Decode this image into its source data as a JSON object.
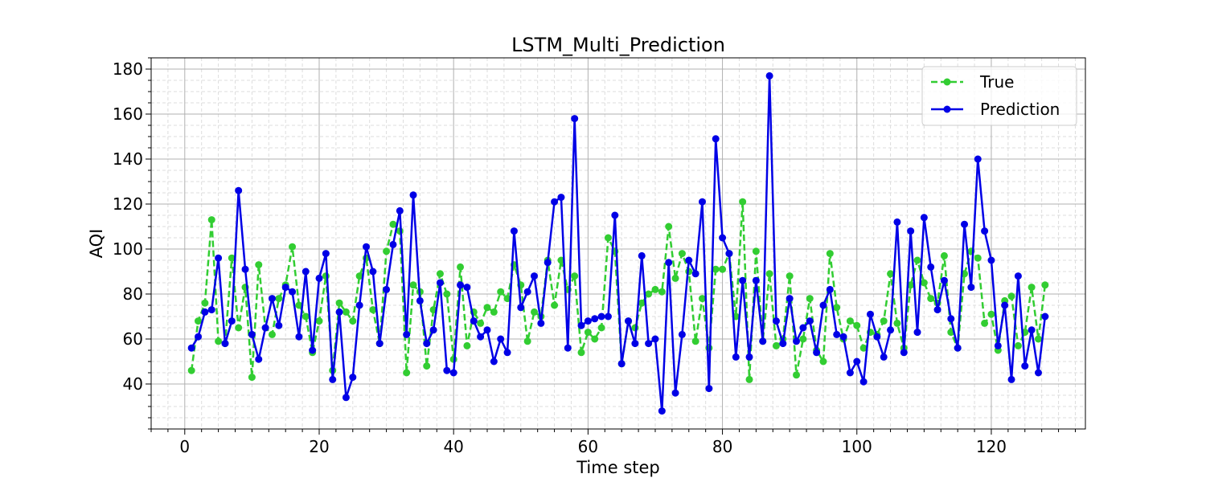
{
  "chart_data": {
    "type": "line",
    "title": "LSTM_Multi_Prediction",
    "xlabel": "Time step",
    "ylabel": "AQI",
    "xlim": [
      -5,
      134
    ],
    "ylim": [
      20,
      185
    ],
    "xticks": [
      0,
      20,
      40,
      60,
      80,
      100,
      120
    ],
    "yticks": [
      40,
      60,
      80,
      100,
      120,
      140,
      160,
      180
    ],
    "x_minor_step": 2.5,
    "y_minor_step": 5,
    "grid": true,
    "legend": "top-right",
    "x": [
      1,
      2,
      3,
      4,
      5,
      6,
      7,
      8,
      9,
      10,
      11,
      12,
      13,
      14,
      15,
      16,
      17,
      18,
      19,
      20,
      21,
      22,
      23,
      24,
      25,
      26,
      27,
      28,
      29,
      30,
      31,
      32,
      33,
      34,
      35,
      36,
      37,
      38,
      39,
      40,
      41,
      42,
      43,
      44,
      45,
      46,
      47,
      48,
      49,
      50,
      51,
      52,
      53,
      54,
      55,
      56,
      57,
      58,
      59,
      60,
      61,
      62,
      63,
      64,
      65,
      66,
      67,
      68,
      69,
      70,
      71,
      72,
      73,
      74,
      75,
      76,
      77,
      78,
      79,
      80,
      81,
      82,
      83,
      84,
      85,
      86,
      87,
      88,
      89,
      90,
      91,
      92,
      93,
      94,
      95,
      96,
      97,
      98,
      99,
      100,
      101,
      102,
      103,
      104,
      105,
      106,
      107,
      108,
      109,
      110,
      111,
      112,
      113,
      114,
      115,
      116,
      117,
      118,
      119,
      120,
      121,
      122,
      123,
      124,
      125,
      126,
      127,
      128
    ],
    "series": [
      {
        "name": "True",
        "color": "#32cd32",
        "style": "dashed",
        "values": [
          46,
          68,
          76,
          113,
          59,
          58,
          96,
          65,
          83,
          43,
          93,
          65,
          62,
          78,
          84,
          101,
          75,
          70,
          54,
          68,
          88,
          46,
          76,
          72,
          68,
          88,
          96,
          73,
          58,
          99,
          111,
          108,
          45,
          84,
          81,
          48,
          73,
          89,
          80,
          51,
          92,
          57,
          72,
          67,
          74,
          72,
          81,
          78,
          93,
          84,
          59,
          72,
          70,
          95,
          75,
          95,
          82,
          88,
          54,
          63,
          60,
          65,
          105,
          99,
          49,
          68,
          65,
          76,
          80,
          82,
          81,
          110,
          87,
          98,
          90,
          59,
          78,
          56,
          91,
          91,
          98,
          70,
          121,
          42,
          99,
          59,
          89,
          57,
          60,
          88,
          44,
          60,
          78,
          55,
          50,
          98,
          74,
          60,
          68,
          66,
          56,
          63,
          62,
          68,
          89,
          67,
          56,
          84,
          95,
          85,
          78,
          76,
          97,
          63,
          56,
          89,
          99,
          96,
          67,
          71,
          55,
          77,
          79,
          57,
          63,
          83,
          60,
          84
        ]
      },
      {
        "name": "Prediction",
        "color": "#0000e6",
        "style": "solid",
        "values": [
          56,
          61,
          72,
          73,
          96,
          58,
          68,
          126,
          91,
          62,
          51,
          65,
          78,
          66,
          83,
          81,
          61,
          90,
          55,
          87,
          98,
          42,
          72,
          34,
          43,
          75,
          101,
          90,
          58,
          82,
          102,
          117,
          62,
          124,
          77,
          58,
          64,
          85,
          46,
          45,
          84,
          83,
          68,
          61,
          64,
          50,
          60,
          54,
          108,
          74,
          81,
          88,
          67,
          94,
          121,
          123,
          56,
          158,
          66,
          68,
          69,
          70,
          70,
          115,
          49,
          68,
          58,
          97,
          58,
          60,
          28,
          94,
          36,
          62,
          95,
          89,
          121,
          38,
          149,
          105,
          98,
          52,
          86,
          52,
          86,
          59,
          177,
          68,
          58,
          78,
          59,
          65,
          68,
          54,
          75,
          82,
          62,
          61,
          45,
          50,
          41,
          71,
          61,
          52,
          64,
          112,
          54,
          108,
          63,
          114,
          92,
          73,
          86,
          69,
          56,
          111,
          83,
          140,
          108,
          95,
          57,
          75,
          42,
          88,
          48,
          64,
          45,
          70
        ]
      }
    ]
  }
}
